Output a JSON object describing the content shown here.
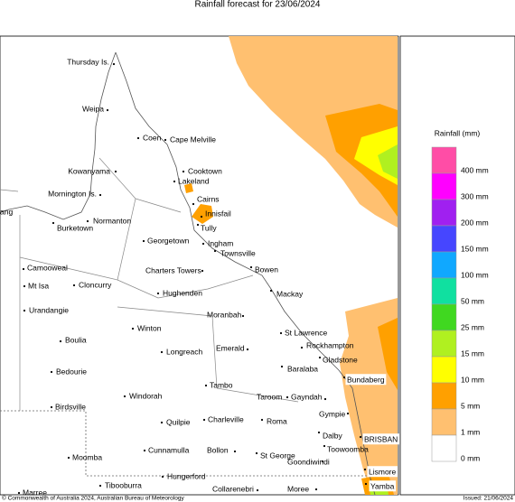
{
  "title": "Rainfall forecast for 23/06/2024",
  "places": [
    "Thursday Is.",
    "Weipa",
    "Coen",
    "Cape Melville",
    "Cooktown",
    "Kowanyama",
    "Lakeland",
    "Mornington Is.",
    "Cairns",
    "Innisfail",
    "Tully",
    "Burketown",
    "Normanton",
    "Georgetown",
    "Ingham",
    "Townsville",
    "Camooweal",
    "Charters Towers",
    "Bowen",
    "Mt Isa",
    "Cloncurry",
    "Mackay",
    "Hughenden",
    "Urandangie",
    "Moranbah",
    "Winton",
    "St Lawrence",
    "Boulia",
    "Rockhampton",
    "Emerald",
    "Longreach",
    "Gladstone",
    "Bedourie",
    "Baralaba",
    "Bundaberg",
    "Tambo",
    "Windorah",
    "Taroom",
    "Gayndah",
    "Birdsville",
    "Gympie",
    "Quilpie",
    "Charleville",
    "Roma",
    "Dalby",
    "BRISBAN",
    "Toowoomba",
    "Cunnamulla",
    "Bollon",
    "Moomba",
    "St George",
    "Goondiwindi",
    "Tibooburra",
    "Hungerford",
    "Lismore",
    "Collarenebri",
    "Moree",
    "Yamba",
    "Marree",
    "ang"
  ],
  "legend": {
    "title": "Rainfall (mm)",
    "items": [
      {
        "label": "400 mm",
        "color": "#ff4da6"
      },
      {
        "label": "300 mm",
        "color": "#ff00ff"
      },
      {
        "label": "200 mm",
        "color": "#a020f0"
      },
      {
        "label": "150 mm",
        "color": "#4646ff"
      },
      {
        "label": "100 mm",
        "color": "#10a8ff"
      },
      {
        "label": "50 mm",
        "color": "#10e0a0"
      },
      {
        "label": "25 mm",
        "color": "#40d820"
      },
      {
        "label": "15 mm",
        "color": "#b0f020"
      },
      {
        "label": "10 mm",
        "color": "#ffff00"
      },
      {
        "label": "5 mm",
        "color": "#ffa000"
      },
      {
        "label": "1 mm",
        "color": "#ffc070"
      },
      {
        "label": "0 mm",
        "color": "#ffffff"
      }
    ]
  },
  "copyright": "© Commonwealth of Australia 2024, Australian Bureau of Meteorology",
  "issued": "Issued: 21/06/2024"
}
